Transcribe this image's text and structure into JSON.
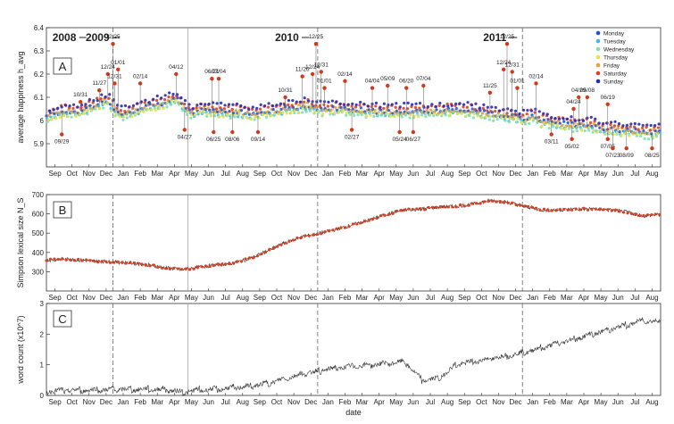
{
  "chart_data": [
    {
      "panel": "A",
      "type": "scatter",
      "ylabel": "average happiness h_avg",
      "ylim": [
        5.8,
        6.4
      ],
      "yticks": [
        "5.9",
        "6",
        "6.1",
        "6.2",
        "6.3",
        "6.4"
      ],
      "years": [
        "2008",
        "2009",
        "2010",
        "2011"
      ],
      "legend": [
        "Monday",
        "Tuesday",
        "Wednesday",
        "Thursday",
        "Friday",
        "Saturday",
        "Sunday"
      ],
      "legend_placement": "top-right",
      "colors": [
        "#1f4fd6",
        "#43b8e8",
        "#7fe0b0",
        "#e9e04a",
        "#f0a030",
        "#e23d1f",
        "#2a2ab0"
      ],
      "trend": {
        "x": [
          0,
          1,
          2,
          3,
          3.6,
          4,
          4.5,
          5,
          6,
          7,
          7.6,
          8,
          8.5,
          9,
          10,
          11,
          12,
          13,
          14,
          15,
          15.3,
          16,
          17,
          18,
          19,
          20,
          21,
          22,
          23,
          24,
          25,
          26,
          27,
          28,
          28.5,
          29,
          30,
          31,
          32,
          33,
          34,
          35,
          36
        ],
        "y": [
          6.02,
          6.04,
          6.04,
          6.07,
          6.09,
          6.05,
          6.03,
          6.04,
          6.06,
          6.08,
          6.1,
          6.07,
          6.03,
          6.05,
          6.04,
          6.04,
          6.03,
          6.04,
          6.05,
          6.06,
          6.07,
          6.05,
          6.05,
          6.05,
          6.04,
          6.04,
          6.04,
          6.04,
          6.04,
          6.05,
          6.04,
          6.03,
          6.02,
          6.01,
          6.02,
          6.0,
          5.99,
          5.98,
          5.98,
          5.96,
          5.96,
          5.95,
          5.95
        ]
      },
      "annotations": [
        {
          "label": "10/31",
          "x": 2,
          "y": 6.08
        },
        {
          "label": "09/29",
          "x": 0.9,
          "y": 5.94
        },
        {
          "label": "11/27",
          "x": 3.1,
          "y": 6.13
        },
        {
          "label": "12/25",
          "x": 3.9,
          "y": 6.33
        },
        {
          "label": "12/24",
          "x": 3.6,
          "y": 6.2
        },
        {
          "label": "01/01",
          "x": 4.2,
          "y": 6.22
        },
        {
          "label": "12/31",
          "x": 4.0,
          "y": 6.16
        },
        {
          "label": "02/14",
          "x": 5.5,
          "y": 6.16
        },
        {
          "label": "04/12",
          "x": 7.6,
          "y": 6.2
        },
        {
          "label": "04/27",
          "x": 8.1,
          "y": 5.96
        },
        {
          "label": "06/21",
          "x": 9.7,
          "y": 6.18
        },
        {
          "label": "07/04",
          "x": 10.1,
          "y": 6.18
        },
        {
          "label": "06/25",
          "x": 9.8,
          "y": 5.95
        },
        {
          "label": "08/06",
          "x": 10.9,
          "y": 5.95
        },
        {
          "label": "09/14",
          "x": 12.4,
          "y": 5.95
        },
        {
          "label": "10/31",
          "x": 14,
          "y": 6.1
        },
        {
          "label": "11/26",
          "x": 15,
          "y": 6.19
        },
        {
          "label": "12/25",
          "x": 15.8,
          "y": 6.33
        },
        {
          "label": "12/24",
          "x": 15.6,
          "y": 6.2
        },
        {
          "label": "12/31",
          "x": 16.1,
          "y": 6.21
        },
        {
          "label": "01/01",
          "x": 16.3,
          "y": 6.14
        },
        {
          "label": "02/14",
          "x": 17.5,
          "y": 6.17
        },
        {
          "label": "04/04",
          "x": 19.1,
          "y": 6.14
        },
        {
          "label": "05/09",
          "x": 20.0,
          "y": 6.15
        },
        {
          "label": "06/20",
          "x": 21.1,
          "y": 6.14
        },
        {
          "label": "07/04",
          "x": 22.1,
          "y": 6.15
        },
        {
          "label": "02/27",
          "x": 17.9,
          "y": 5.96
        },
        {
          "label": "05/24",
          "x": 20.7,
          "y": 5.95
        },
        {
          "label": "06/27",
          "x": 21.5,
          "y": 5.95
        },
        {
          "label": "11/25",
          "x": 26.0,
          "y": 6.12
        },
        {
          "label": "12/25",
          "x": 27.0,
          "y": 6.33
        },
        {
          "label": "12/24",
          "x": 26.8,
          "y": 6.22
        },
        {
          "label": "12/31",
          "x": 27.3,
          "y": 6.21
        },
        {
          "label": "01/01",
          "x": 27.6,
          "y": 6.14
        },
        {
          "label": "02/14",
          "x": 28.7,
          "y": 6.16
        },
        {
          "label": "04/24",
          "x": 30.9,
          "y": 6.05
        },
        {
          "label": "04/29",
          "x": 31.2,
          "y": 6.1
        },
        {
          "label": "05/08",
          "x": 31.7,
          "y": 6.1
        },
        {
          "label": "06/19",
          "x": 32.9,
          "y": 6.07
        },
        {
          "label": "03/11",
          "x": 29.6,
          "y": 5.94
        },
        {
          "label": "05/02",
          "x": 30.8,
          "y": 5.92
        },
        {
          "label": "07/05",
          "x": 32.9,
          "y": 5.92
        },
        {
          "label": "07/23",
          "x": 33.2,
          "y": 5.88
        },
        {
          "label": "08/09",
          "x": 34.0,
          "y": 5.88
        },
        {
          "label": "08/25",
          "x": 35.5,
          "y": 5.88
        }
      ]
    },
    {
      "panel": "B",
      "type": "line",
      "ylabel": "Simpson lexical size N_S",
      "ylim": [
        200,
        700
      ],
      "yticks": [
        "300",
        "400",
        "500",
        "600",
        "700"
      ],
      "x": [
        0,
        1,
        2,
        3,
        4,
        5,
        6,
        7,
        8,
        9,
        10,
        11,
        12,
        13,
        14,
        15,
        16,
        17,
        18,
        19,
        20,
        21,
        22,
        23,
        24,
        25,
        26,
        27,
        28,
        29,
        30,
        31,
        32,
        33,
        34,
        35,
        36
      ],
      "y": [
        360,
        365,
        360,
        355,
        350,
        345,
        335,
        320,
        310,
        325,
        335,
        345,
        370,
        410,
        450,
        480,
        500,
        520,
        545,
        570,
        600,
        620,
        625,
        635,
        640,
        650,
        670,
        660,
        640,
        620,
        620,
        625,
        625,
        620,
        610,
        590,
        595
      ]
    },
    {
      "panel": "C",
      "type": "line",
      "ylabel": "word count (x10^7)",
      "xlabel": "date",
      "ylim": [
        0,
        3
      ],
      "yticks": [
        "0",
        "1",
        "2",
        "3"
      ],
      "months": [
        "Sep",
        "Oct",
        "Nov",
        "Dec",
        "Jan",
        "Feb",
        "Mar",
        "Apr",
        "May",
        "Jun",
        "Jul",
        "Aug",
        "Sep",
        "Oct",
        "Nov",
        "Dec",
        "Jan",
        "Feb",
        "Mar",
        "Apr",
        "May",
        "Jun",
        "Jul",
        "Aug",
        "Sep",
        "Oct",
        "Nov",
        "Dec",
        "Jan",
        "Feb",
        "Mar",
        "Apr",
        "May",
        "Jun",
        "Jul",
        "Aug"
      ],
      "x": [
        0,
        1,
        2,
        3,
        4,
        5,
        6,
        7,
        8,
        9,
        10,
        11,
        12,
        13,
        14,
        15,
        16,
        17,
        18,
        19,
        20,
        21,
        22,
        23,
        24,
        25,
        26,
        27,
        28,
        29,
        30,
        31,
        32,
        33,
        34,
        35,
        36
      ],
      "y": [
        0.15,
        0.16,
        0.17,
        0.18,
        0.2,
        0.2,
        0.2,
        0.2,
        0.1,
        0.18,
        0.2,
        0.25,
        0.3,
        0.4,
        0.55,
        0.7,
        0.8,
        0.9,
        0.95,
        1.0,
        1.05,
        1.1,
        0.5,
        0.55,
        1.0,
        1.1,
        1.2,
        1.3,
        1.4,
        1.55,
        1.7,
        1.85,
        2.0,
        2.15,
        2.3,
        2.45,
        2.4
      ]
    }
  ]
}
